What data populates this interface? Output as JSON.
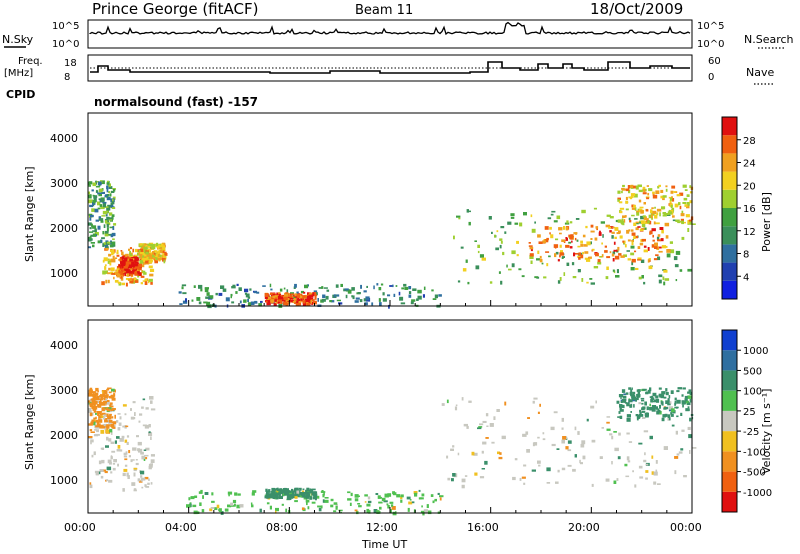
{
  "header": {
    "station": "Prince George (fitACF)",
    "beam": "Beam 11",
    "date": "18/Oct/2009"
  },
  "top_panels": {
    "nsky_label": "N.Sky",
    "nsearch_label": "N.Search",
    "freq_label_1": "Freq.",
    "freq_label_2": "[MHz]",
    "cpid_label": "CPID",
    "nave_label": "Nave",
    "nsky_ticks": [
      "10^5",
      "10^0"
    ],
    "nsearch_ticks": [
      "10^5",
      "10^0"
    ],
    "freq_ticks": [
      "18",
      "8"
    ],
    "nave_ticks": [
      "60",
      "0"
    ],
    "cpid_text": "normalsound (fast) -157"
  },
  "axes": {
    "x_label": "Time UT",
    "x_ticks": [
      "00:00",
      "04:00",
      "08:00",
      "12:00",
      "16:00",
      "20:00",
      "00:00"
    ],
    "y_label": "Slant Range [km]",
    "y_ticks": [
      "1000",
      "2000",
      "3000",
      "4000"
    ]
  },
  "colorbars": {
    "power": {
      "label": "Power [dB]",
      "ticks": [
        "4",
        "8",
        "12",
        "16",
        "20",
        "24",
        "28"
      ],
      "colors": [
        "#1020e0",
        "#2040b0",
        "#2f6f9f",
        "#3a8f5a",
        "#40a040",
        "#9fcf30",
        "#f2d020",
        "#f0a020",
        "#f06010",
        "#e01010"
      ]
    },
    "velocity": {
      "label": "Velocity [m s⁻¹]",
      "ticks": [
        "1000",
        "500",
        "100",
        "25",
        "-25",
        "-100",
        "-500",
        "-1000"
      ],
      "colors": [
        "#1040d0",
        "#2f6fa0",
        "#3a8f6a",
        "#50c050",
        "#c8c8c0",
        "#f0c020",
        "#f09020",
        "#f06010",
        "#e01010"
      ]
    }
  },
  "chart_data": [
    {
      "type": "heatmap",
      "title": "Power",
      "xlabel": "Time UT",
      "ylabel": "Slant Range [km]",
      "xlim": [
        "00:00",
        "24:00"
      ],
      "ylim": [
        180,
        4500
      ],
      "colorbar_range": [
        0,
        30
      ],
      "regions": [
        {
          "t": [
            0.0,
            1.0
          ],
          "range": [
            1500,
            3000
          ],
          "level": 12
        },
        {
          "t": [
            0.5,
            2.5
          ],
          "range": [
            700,
            1500
          ],
          "level": 22
        },
        {
          "t": [
            1.2,
            2.0
          ],
          "range": [
            900,
            1300
          ],
          "level": 28
        },
        {
          "t": [
            2.0,
            3.0
          ],
          "range": [
            1200,
            1600
          ],
          "level": 20
        },
        {
          "t": [
            3.5,
            14.0
          ],
          "range": [
            200,
            700
          ],
          "level": 10
        },
        {
          "t": [
            7.0,
            9.0
          ],
          "range": [
            250,
            500
          ],
          "level": 26
        },
        {
          "t": [
            14.5,
            24.0
          ],
          "range": [
            700,
            2400
          ],
          "level": 14
        },
        {
          "t": [
            17.5,
            23.0
          ],
          "range": [
            1200,
            2000
          ],
          "level": 24
        },
        {
          "t": [
            21.0,
            24.0
          ],
          "range": [
            2000,
            2900
          ],
          "level": 20
        }
      ]
    },
    {
      "type": "heatmap",
      "title": "Velocity",
      "xlabel": "Time UT",
      "ylabel": "Slant Range [km]",
      "xlim": [
        "00:00",
        "24:00"
      ],
      "ylim": [
        180,
        4500
      ],
      "colorbar_range": [
        -1000,
        1000
      ],
      "regions": [
        {
          "t": [
            0.0,
            2.5
          ],
          "range": [
            700,
            2800
          ],
          "velocity": 0
        },
        {
          "t": [
            0.0,
            1.0
          ],
          "range": [
            2000,
            3000
          ],
          "velocity": -150
        },
        {
          "t": [
            3.5,
            14.0
          ],
          "range": [
            200,
            700
          ],
          "velocity": 50
        },
        {
          "t": [
            7.0,
            9.0
          ],
          "range": [
            550,
            750
          ],
          "velocity": 200
        },
        {
          "t": [
            14.0,
            24.0
          ],
          "range": [
            800,
            2800
          ],
          "velocity": 0
        },
        {
          "t": [
            21.0,
            24.0
          ],
          "range": [
            2300,
            3000
          ],
          "velocity": 300
        }
      ]
    }
  ]
}
